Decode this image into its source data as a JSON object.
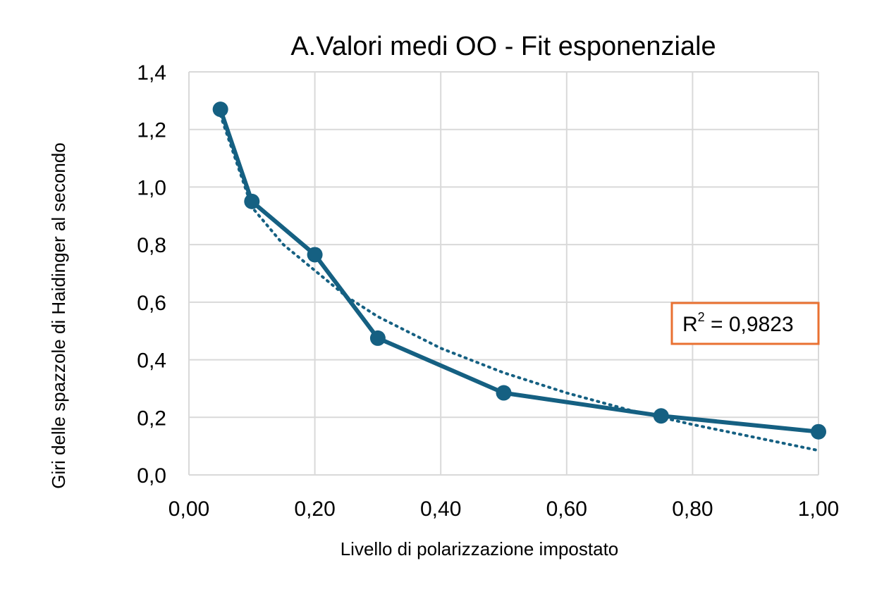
{
  "chart_data": {
    "type": "line",
    "title": "A.Valori medi OO - Fit esponenziale",
    "xlabel": "Livello di polarizzazione impostato",
    "ylabel": "Giri delle spazzole di Haidinger al secondo",
    "xlim": [
      0,
      1
    ],
    "ylim": [
      0,
      1.4
    ],
    "x_ticks": [
      "0,00",
      "0,20",
      "0,40",
      "0,60",
      "0,80",
      "1,00"
    ],
    "y_ticks": [
      "0,0",
      "0,2",
      "0,4",
      "0,6",
      "0,8",
      "1,0",
      "1,2",
      "1,4"
    ],
    "grid": true,
    "legend": "none",
    "series": [
      {
        "x": [
          0.05,
          0.1,
          0.2,
          0.3,
          0.5,
          0.75,
          1.0
        ],
        "y": [
          1.27,
          0.95,
          0.765,
          0.475,
          0.285,
          0.205,
          0.15
        ],
        "color": "#156082",
        "style": "solid-with-markers"
      }
    ],
    "trendline": {
      "type": "exponential",
      "style": "dotted",
      "color": "#156082",
      "x": [
        0.05,
        0.1,
        0.15,
        0.2,
        0.25,
        0.3,
        0.4,
        0.5,
        0.6,
        0.7,
        0.8,
        0.9,
        1.0
      ],
      "y": [
        1.25,
        0.93,
        0.8,
        0.71,
        0.62,
        0.55,
        0.44,
        0.355,
        0.285,
        0.225,
        0.175,
        0.13,
        0.085
      ]
    },
    "annotation": {
      "r_label": "R",
      "r_exp": "2",
      "value_text": " = 0,9823",
      "border_color": "#e97132"
    },
    "gridline_color": "#d9d9d9"
  }
}
